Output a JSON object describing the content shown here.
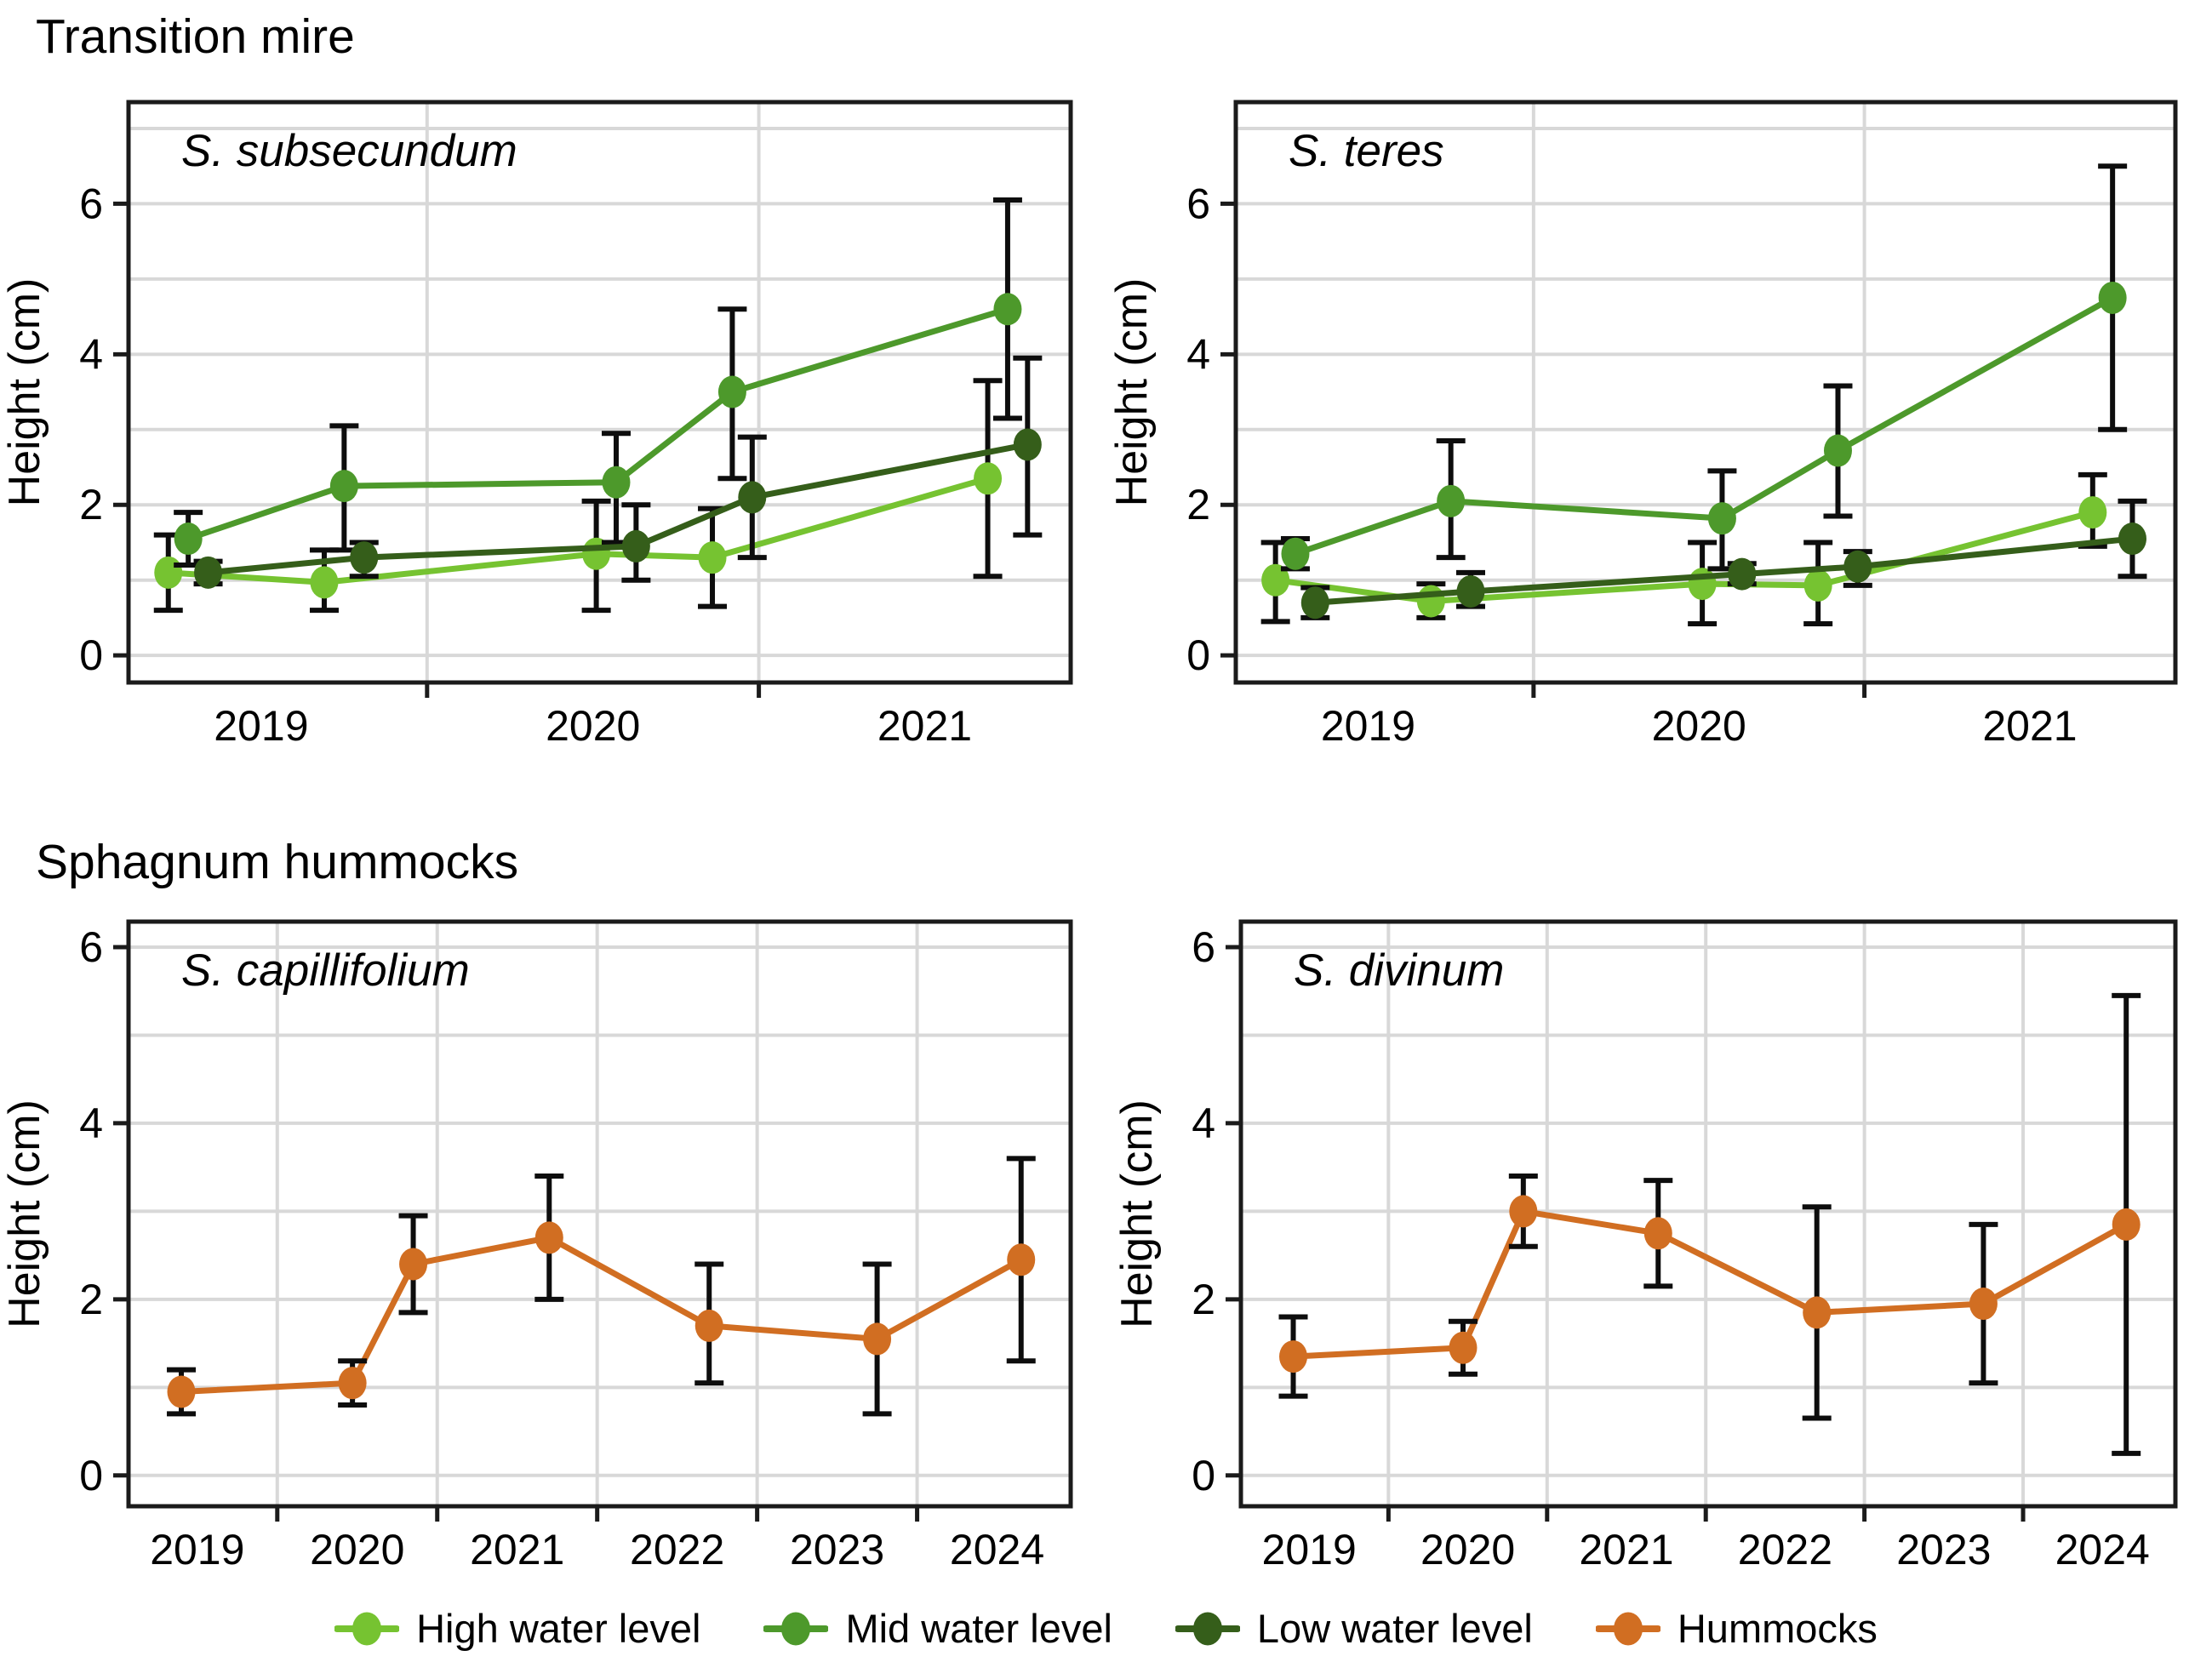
{
  "page": {
    "heading_top": "Transition mire",
    "heading_bottom": "Sphagnum hummocks"
  },
  "axes": {
    "y_label": "Height (cm)"
  },
  "legend": [
    {
      "label": "High water level",
      "color": "#76c331"
    },
    {
      "label": "Mid water level",
      "color": "#4d992b"
    },
    {
      "label": "Low water level",
      "color": "#355e1a"
    },
    {
      "label": "Hummocks",
      "color": "#d16e22"
    }
  ],
  "colors": {
    "grid": "#d8d8d8",
    "border": "#1b1b1b",
    "error_bar": "#0d0d0d",
    "text": "#000000"
  },
  "chart_data": [
    {
      "id": "s-subsecundum",
      "type": "line",
      "section": "Transition mire",
      "title": "S. subsecundum",
      "ylabel": "Height (cm)",
      "xlabel": "",
      "xlim": [
        2018.6,
        2021.44
      ],
      "ylim": [
        -0.36,
        7.35
      ],
      "y_grid": [
        0,
        1,
        2,
        3,
        4,
        5,
        6,
        7
      ],
      "x_grid": [
        2019.5,
        2020.5
      ],
      "x_tick_marks": [
        2019.5,
        2020.5
      ],
      "x_tick_labels": [
        {
          "v": 2019,
          "label": "2019"
        },
        {
          "v": 2020,
          "label": "2020"
        },
        {
          "v": 2021,
          "label": "2021"
        }
      ],
      "y_tick_labels": [
        {
          "v": 0,
          "label": "0"
        },
        {
          "v": 2,
          "label": "2"
        },
        {
          "v": 4,
          "label": "4"
        },
        {
          "v": 6,
          "label": "6"
        }
      ],
      "series": [
        {
          "name": "High water level",
          "color": "#76c331",
          "points": [
            {
              "x": 2018.72,
              "y": 1.1,
              "lo": 0.6,
              "hi": 1.6
            },
            {
              "x": 2019.19,
              "y": 0.97,
              "lo": 0.6,
              "hi": 1.4
            },
            {
              "x": 2020.01,
              "y": 1.35,
              "lo": 0.6,
              "hi": 2.05
            },
            {
              "x": 2020.36,
              "y": 1.3,
              "lo": 0.65,
              "hi": 1.95
            },
            {
              "x": 2021.19,
              "y": 2.35,
              "lo": 1.05,
              "hi": 3.65
            }
          ]
        },
        {
          "name": "Mid water level",
          "color": "#4d992b",
          "points": [
            {
              "x": 2018.78,
              "y": 1.55,
              "lo": 1.2,
              "hi": 1.9
            },
            {
              "x": 2019.25,
              "y": 2.25,
              "lo": 1.4,
              "hi": 3.05
            },
            {
              "x": 2020.07,
              "y": 2.3,
              "lo": 1.5,
              "hi": 2.95
            },
            {
              "x": 2020.42,
              "y": 3.5,
              "lo": 2.35,
              "hi": 4.6
            },
            {
              "x": 2021.25,
              "y": 4.6,
              "lo": 3.15,
              "hi": 6.05
            }
          ]
        },
        {
          "name": "Low water level",
          "color": "#355e1a",
          "points": [
            {
              "x": 2018.84,
              "y": 1.1,
              "lo": 0.95,
              "hi": 1.25
            },
            {
              "x": 2019.31,
              "y": 1.3,
              "lo": 1.05,
              "hi": 1.5
            },
            {
              "x": 2020.13,
              "y": 1.45,
              "lo": 1.0,
              "hi": 2.0
            },
            {
              "x": 2020.48,
              "y": 2.1,
              "lo": 1.3,
              "hi": 2.9
            },
            {
              "x": 2021.31,
              "y": 2.8,
              "lo": 1.6,
              "hi": 3.95
            }
          ]
        }
      ]
    },
    {
      "id": "s-teres",
      "type": "line",
      "section": "Transition mire",
      "title": "S. teres",
      "ylabel": "Height (cm)",
      "xlabel": "",
      "xlim": [
        2018.6,
        2021.44
      ],
      "ylim": [
        -0.36,
        7.35
      ],
      "y_grid": [
        0,
        1,
        2,
        3,
        4,
        5,
        6,
        7
      ],
      "x_grid": [
        2019.5,
        2020.5
      ],
      "x_tick_marks": [
        2019.5,
        2020.5
      ],
      "x_tick_labels": [
        {
          "v": 2019,
          "label": "2019"
        },
        {
          "v": 2020,
          "label": "2020"
        },
        {
          "v": 2021,
          "label": "2021"
        }
      ],
      "y_tick_labels": [
        {
          "v": 0,
          "label": "0"
        },
        {
          "v": 2,
          "label": "2"
        },
        {
          "v": 4,
          "label": "4"
        },
        {
          "v": 6,
          "label": "6"
        }
      ],
      "series": [
        {
          "name": "High water level",
          "color": "#76c331",
          "points": [
            {
              "x": 2018.72,
              "y": 1.0,
              "lo": 0.45,
              "hi": 1.5
            },
            {
              "x": 2019.19,
              "y": 0.72,
              "lo": 0.5,
              "hi": 0.95
            },
            {
              "x": 2020.01,
              "y": 0.95,
              "lo": 0.42,
              "hi": 1.5
            },
            {
              "x": 2020.36,
              "y": 0.93,
              "lo": 0.42,
              "hi": 1.5
            },
            {
              "x": 2021.19,
              "y": 1.9,
              "lo": 1.45,
              "hi": 2.4
            }
          ]
        },
        {
          "name": "Mid water level",
          "color": "#4d992b",
          "points": [
            {
              "x": 2018.78,
              "y": 1.35,
              "lo": 1.15,
              "hi": 1.55
            },
            {
              "x": 2019.25,
              "y": 2.05,
              "lo": 1.3,
              "hi": 2.85
            },
            {
              "x": 2020.07,
              "y": 1.82,
              "lo": 1.15,
              "hi": 2.45
            },
            {
              "x": 2020.42,
              "y": 2.72,
              "lo": 1.85,
              "hi": 3.58
            },
            {
              "x": 2021.25,
              "y": 4.75,
              "lo": 3.0,
              "hi": 6.5
            }
          ]
        },
        {
          "name": "Low water level",
          "color": "#355e1a",
          "points": [
            {
              "x": 2018.84,
              "y": 0.7,
              "lo": 0.5,
              "hi": 0.9
            },
            {
              "x": 2019.31,
              "y": 0.85,
              "lo": 0.65,
              "hi": 1.1
            },
            {
              "x": 2020.13,
              "y": 1.08,
              "lo": 0.95,
              "hi": 1.22
            },
            {
              "x": 2020.48,
              "y": 1.18,
              "lo": 0.93,
              "hi": 1.38
            },
            {
              "x": 2021.31,
              "y": 1.55,
              "lo": 1.05,
              "hi": 2.05
            }
          ]
        }
      ]
    },
    {
      "id": "s-capillifolium",
      "type": "line",
      "section": "Sphagnum hummocks",
      "title": "S. capillifolium",
      "ylabel": "Height (cm)",
      "xlabel": "",
      "xlim": [
        2018.57,
        2024.46
      ],
      "ylim": [
        -0.35,
        6.29
      ],
      "y_grid": [
        0,
        1,
        2,
        3,
        4,
        5,
        6
      ],
      "x_grid": [
        2019.5,
        2020.5,
        2021.5,
        2022.5,
        2023.5
      ],
      "x_tick_marks": [
        2019.5,
        2020.5,
        2021.5,
        2022.5,
        2023.5
      ],
      "x_tick_labels": [
        {
          "v": 2019,
          "label": "2019"
        },
        {
          "v": 2020,
          "label": "2020"
        },
        {
          "v": 2021,
          "label": "2021"
        },
        {
          "v": 2022,
          "label": "2022"
        },
        {
          "v": 2023,
          "label": "2023"
        },
        {
          "v": 2024,
          "label": "2024"
        }
      ],
      "y_tick_labels": [
        {
          "v": 0,
          "label": "0"
        },
        {
          "v": 2,
          "label": "2"
        },
        {
          "v": 4,
          "label": "4"
        },
        {
          "v": 6,
          "label": "6"
        }
      ],
      "series": [
        {
          "name": "Hummocks",
          "color": "#d16e22",
          "points": [
            {
              "x": 2018.9,
              "y": 0.95,
              "lo": 0.7,
              "hi": 1.2
            },
            {
              "x": 2019.97,
              "y": 1.05,
              "lo": 0.8,
              "hi": 1.3
            },
            {
              "x": 2020.35,
              "y": 2.4,
              "lo": 1.85,
              "hi": 2.95
            },
            {
              "x": 2021.2,
              "y": 2.7,
              "lo": 2.0,
              "hi": 3.4
            },
            {
              "x": 2022.2,
              "y": 1.7,
              "lo": 1.05,
              "hi": 2.4
            },
            {
              "x": 2023.25,
              "y": 1.55,
              "lo": 0.7,
              "hi": 2.4
            },
            {
              "x": 2024.15,
              "y": 2.45,
              "lo": 1.3,
              "hi": 3.6
            }
          ]
        }
      ]
    },
    {
      "id": "s-divinum",
      "type": "line",
      "section": "Sphagnum hummocks",
      "title": "S. divinum",
      "ylabel": "Height (cm)",
      "xlabel": "",
      "xlim": [
        2018.57,
        2024.46
      ],
      "ylim": [
        -0.35,
        6.29
      ],
      "y_grid": [
        0,
        1,
        2,
        3,
        4,
        5,
        6
      ],
      "x_grid": [
        2019.5,
        2020.5,
        2021.5,
        2022.5,
        2023.5
      ],
      "x_tick_marks": [
        2019.5,
        2020.5,
        2021.5,
        2022.5,
        2023.5
      ],
      "x_tick_labels": [
        {
          "v": 2019,
          "label": "2019"
        },
        {
          "v": 2020,
          "label": "2020"
        },
        {
          "v": 2021,
          "label": "2021"
        },
        {
          "v": 2022,
          "label": "2022"
        },
        {
          "v": 2023,
          "label": "2023"
        },
        {
          "v": 2024,
          "label": "2024"
        }
      ],
      "y_tick_labels": [
        {
          "v": 0,
          "label": "0"
        },
        {
          "v": 2,
          "label": "2"
        },
        {
          "v": 4,
          "label": "4"
        },
        {
          "v": 6,
          "label": "6"
        }
      ],
      "series": [
        {
          "name": "Hummocks",
          "color": "#d16e22",
          "points": [
            {
              "x": 2018.9,
              "y": 1.35,
              "lo": 0.9,
              "hi": 1.8
            },
            {
              "x": 2019.97,
              "y": 1.45,
              "lo": 1.15,
              "hi": 1.75
            },
            {
              "x": 2020.35,
              "y": 3.0,
              "lo": 2.6,
              "hi": 3.4
            },
            {
              "x": 2021.2,
              "y": 2.75,
              "lo": 2.15,
              "hi": 3.35
            },
            {
              "x": 2022.2,
              "y": 1.85,
              "lo": 0.65,
              "hi": 3.05
            },
            {
              "x": 2023.25,
              "y": 1.95,
              "lo": 1.05,
              "hi": 2.85
            },
            {
              "x": 2024.15,
              "y": 2.85,
              "lo": 0.25,
              "hi": 5.45
            }
          ]
        }
      ]
    }
  ]
}
